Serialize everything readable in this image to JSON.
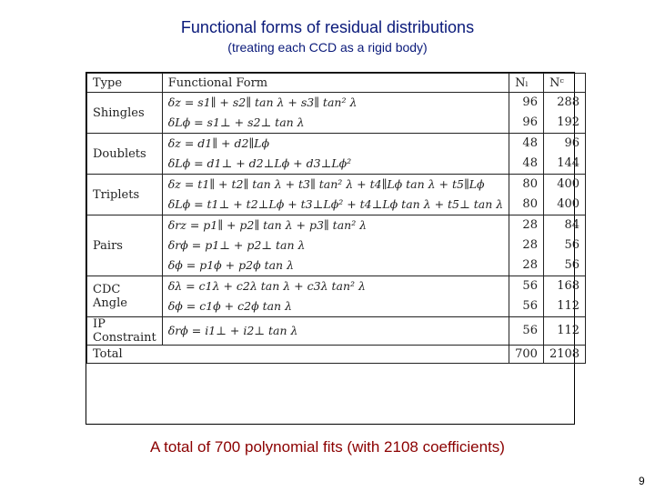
{
  "title": "Functional forms of residual distributions",
  "subtitle": "(treating each CCD as a rigid body)",
  "table": {
    "headers": {
      "type": "Type",
      "form": "Functional Form",
      "nl": "Nₗ",
      "nc": "Nᶜ"
    },
    "rows": [
      {
        "type": "Shingles",
        "forms": [
          "δz = s1∥ + s2∥ tan λ + s3∥ tan² λ",
          "δLϕ = s1⊥ + s2⊥ tan λ"
        ],
        "nl": [
          "96",
          "96"
        ],
        "nc": [
          "288",
          "192"
        ]
      },
      {
        "type": "Doublets",
        "forms": [
          "δz = d1∥ + d2∥Lϕ",
          "δLϕ = d1⊥ + d2⊥Lϕ + d3⊥Lϕ²"
        ],
        "nl": [
          "48",
          "48"
        ],
        "nc": [
          "96",
          "144"
        ]
      },
      {
        "type": "Triplets",
        "forms": [
          "δz = t1∥ + t2∥ tan λ + t3∥ tan² λ + t4∥Lϕ tan λ + t5∥Lϕ",
          "δLϕ = t1⊥ + t2⊥Lϕ + t3⊥Lϕ² + t4⊥Lϕ tan λ + t5⊥ tan λ"
        ],
        "nl": [
          "80",
          "80"
        ],
        "nc": [
          "400",
          "400"
        ]
      },
      {
        "type": "Pairs",
        "forms": [
          "δrz = p1∥ + p2∥ tan λ + p3∥ tan² λ",
          "δrϕ = p1⊥ + p2⊥ tan λ",
          "δϕ = p1ϕ + p2ϕ tan λ"
        ],
        "nl": [
          "28",
          "28",
          "28"
        ],
        "nc": [
          "84",
          "56",
          "56"
        ]
      },
      {
        "type": "CDC Angle",
        "forms": [
          "δλ = c1λ + c2λ tan λ + c3λ tan² λ",
          "δϕ = c1ϕ + c2ϕ tan λ"
        ],
        "nl": [
          "56",
          "56"
        ],
        "nc": [
          "168",
          "112"
        ]
      },
      {
        "type": "IP Constraint",
        "forms": [
          "δrϕ = i1⊥ + i2⊥ tan λ"
        ],
        "nl": [
          "56"
        ],
        "nc": [
          "112"
        ]
      }
    ],
    "total": {
      "label": "Total",
      "nl": "700",
      "nc": "2108"
    }
  },
  "footer": "A total of 700 polynomial fits (with 2108 coefficients)",
  "page_number": "9",
  "colors": {
    "title": "#0a1a7a",
    "footer": "#8b0000"
  }
}
